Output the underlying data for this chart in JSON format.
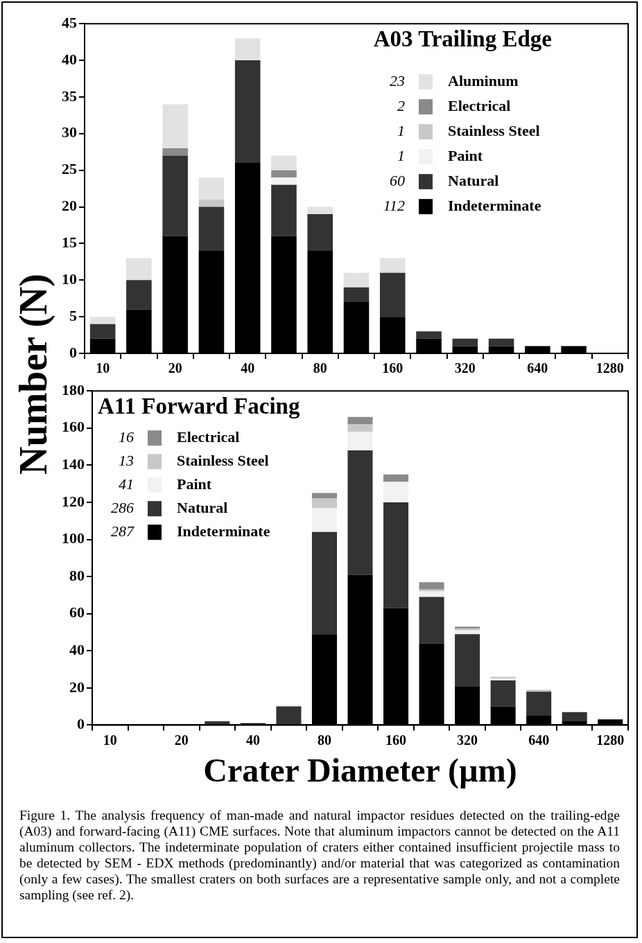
{
  "chart_data": [
    {
      "type": "bar",
      "title": "A03 Trailing Edge",
      "ylabel": "Number (N)",
      "categories": [
        "10",
        null,
        "20",
        null,
        "40",
        null,
        "80",
        null,
        "160",
        null,
        "320",
        null,
        "640",
        null,
        "1280"
      ],
      "stacked": true,
      "ylim": [
        0,
        45
      ],
      "yticks": [
        0,
        5,
        10,
        15,
        20,
        25,
        30,
        35,
        40,
        45
      ],
      "legend": "top right",
      "annotations": [
        "23",
        "2",
        "1",
        "1",
        "60",
        "112"
      ],
      "series": [
        {
          "name": "Indeterminate",
          "color": "#000000",
          "values": [
            2,
            6,
            16,
            14,
            26,
            16,
            14,
            7,
            5,
            2,
            1,
            1,
            1,
            1,
            0
          ]
        },
        {
          "name": "Natural",
          "color": "#333333",
          "values": [
            2,
            4,
            11,
            6,
            14,
            7,
            5,
            2,
            6,
            1,
            1,
            1,
            0,
            0,
            0
          ]
        },
        {
          "name": "Paint",
          "color": "#f2f2f2",
          "values": [
            0,
            0,
            0,
            0,
            0,
            1,
            0,
            0,
            0,
            0,
            0,
            0,
            0,
            0,
            0
          ]
        },
        {
          "name": "Stainless Steel",
          "color": "#c8c8c8",
          "values": [
            0,
            0,
            0,
            1,
            0,
            0,
            0,
            0,
            0,
            0,
            0,
            0,
            0,
            0,
            0
          ]
        },
        {
          "name": "Electrical",
          "color": "#8a8a8a",
          "values": [
            0,
            0,
            1,
            0,
            0,
            1,
            0,
            0,
            0,
            0,
            0,
            0,
            0,
            0,
            0
          ]
        },
        {
          "name": "Aluminum",
          "color": "#e2e2e2",
          "values": [
            1,
            3,
            6,
            3,
            3,
            2,
            1,
            2,
            2,
            0,
            0,
            0,
            0,
            0,
            0
          ]
        }
      ]
    },
    {
      "type": "bar",
      "title": "A11 Forward Facing",
      "xlabel": "Crater Diameter (µm)",
      "categories": [
        "10",
        null,
        "20",
        null,
        "40",
        null,
        "80",
        null,
        "160",
        null,
        "320",
        null,
        "640",
        null,
        "1280"
      ],
      "stacked": true,
      "ylim": [
        0,
        180
      ],
      "yticks": [
        0,
        20,
        40,
        60,
        80,
        100,
        120,
        140,
        160,
        180
      ],
      "legend": "top left",
      "annotations": [
        "16",
        "13",
        "41",
        "286",
        "287",
        "Figure 1.  The analysis frequency of man-made and natural impactor residues detected on the trailing-edge (A03) and forward-facing (A11) CME surfaces.  Note that aluminum impactors cannot be detected on the A11 aluminum collectors.  The indeterminate population of craters either contained insufficient projectile mass to be detected by SEM - EDX methods (predominantly) and/or material that was categorized as contamination (only a few cases).  The smallest craters on both surfaces are a representative sample only, and not a complete sampling (see ref. 2)."
      ],
      "series": [
        {
          "name": "Indeterminate",
          "color": "#000000",
          "values": [
            0,
            0,
            0,
            0,
            1,
            0,
            49,
            81,
            63,
            44,
            21,
            10,
            5,
            2,
            3
          ]
        },
        {
          "name": "Natural",
          "color": "#333333",
          "values": [
            0,
            0,
            0,
            2,
            0,
            10,
            55,
            67,
            57,
            25,
            28,
            14,
            13,
            5,
            0
          ]
        },
        {
          "name": "Paint",
          "color": "#f2f2f2",
          "values": [
            0,
            0,
            0,
            0,
            0,
            1,
            13,
            10,
            11,
            3,
            2,
            1,
            0,
            0,
            0
          ]
        },
        {
          "name": "Stainless Steel",
          "color": "#c8c8c8",
          "values": [
            0,
            0,
            0,
            0,
            0,
            0,
            5,
            4,
            0,
            1,
            1,
            1,
            1,
            0,
            0
          ]
        },
        {
          "name": "Electrical",
          "color": "#8a8a8a",
          "values": [
            0,
            0,
            0,
            0,
            0,
            0,
            3,
            4,
            4,
            4,
            1,
            0,
            0,
            0,
            0
          ]
        }
      ]
    }
  ]
}
